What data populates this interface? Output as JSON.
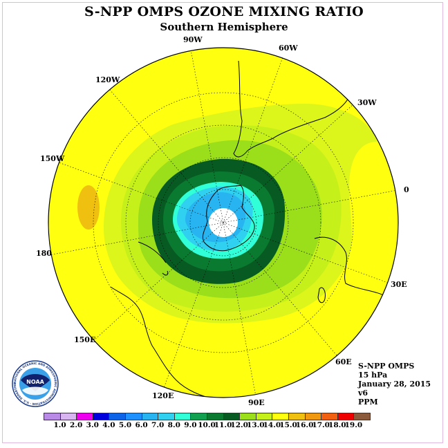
{
  "title": "S-NPP OMPS OZONE MIXING RATIO",
  "subtitle": "Southern Hemisphere",
  "longitude_labels": [
    "90W",
    "60W",
    "30W",
    "0",
    "30E",
    "60E",
    "90E",
    "120E",
    "150E",
    "180",
    "150W",
    "120W"
  ],
  "info": {
    "instrument": "S-NPP OMPS",
    "level": "15 hPa",
    "date": "January 28, 2015",
    "version": "v6",
    "units": "PPM"
  },
  "logo": {
    "text": "NOAA",
    "ring_text": "NATIONAL OCEANIC AND ATMOSPHERIC ADMINISTRATION · U.S. DEPARTMENT OF COMMERCE"
  },
  "colorbar": {
    "labels": [
      "1.0",
      "2.0",
      "3.0",
      "4.0",
      "5.0",
      "6.0",
      "7.0",
      "8.0",
      "9.0",
      "10.0",
      "11.0",
      "12.0",
      "13.0",
      "14.0",
      "15.0",
      "16.0",
      "17.0",
      "18.0",
      "19.0"
    ],
    "colors": [
      "#b98ae6",
      "#d8b4f0",
      "#ee00ee",
      "#0000dd",
      "#0c63e8",
      "#1e90ff",
      "#28b4f0",
      "#30d0f0",
      "#30ffd8",
      "#10a050",
      "#0a7a30",
      "#075a22",
      "#9bde1a",
      "#c6f01a",
      "#ffff10",
      "#f0c010",
      "#f09810",
      "#f06010",
      "#ee0000",
      "#8b5a3c"
    ]
  },
  "map_colors": {
    "background": "#ffff10",
    "orange": "#f0c010",
    "light_yellow_green": "#dcf51a",
    "yellow_green": "#c6f01a",
    "green": "#9bde1a",
    "dark_green": "#075a22",
    "medium_green": "#0a7a30",
    "cyan": "#30ffd8",
    "light_blue": "#30d0f0",
    "blue": "#28b4f0",
    "white": "#ffffff"
  }
}
